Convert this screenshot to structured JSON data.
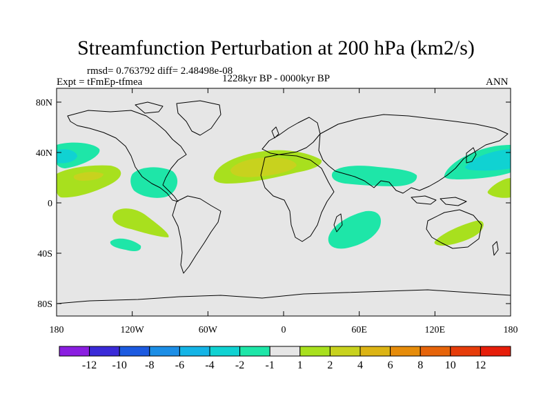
{
  "title": "Streamfunction Perturbation at 200 hPa (km2/s)",
  "stats": "rmsd= 0.763792 diff= 2.48498e-08",
  "experiment": "Expt = tFmEp-tfmea",
  "period": "1228kyr BP - 0000kyr BP",
  "season": "ANN",
  "lat_ticks": [
    "80N",
    "40N",
    "0",
    "40S",
    "80S"
  ],
  "lat_values": [
    80,
    40,
    0,
    -40,
    -80
  ],
  "lon_ticks": [
    "180",
    "120W",
    "60W",
    "0",
    "60E",
    "120E",
    "180"
  ],
  "lon_values": [
    -180,
    -120,
    -60,
    0,
    60,
    120,
    180
  ],
  "colorbar": {
    "labels": [
      "-12",
      "-10",
      "-8",
      "-6",
      "-4",
      "-2",
      "-1",
      "1",
      "2",
      "4",
      "6",
      "8",
      "10",
      "12"
    ],
    "colors": [
      "#8a1ee0",
      "#3a2ad8",
      "#1c5ae0",
      "#1c8ee6",
      "#14b4e6",
      "#10d2d2",
      "#1ee6a8",
      "#e6e6e6",
      "#a8e01e",
      "#c8d21e",
      "#dcb414",
      "#e68c0a",
      "#e6640a",
      "#e63c0a",
      "#e61e0a"
    ]
  },
  "map_colors": {
    "background": "#e6e6e6",
    "coast": "#000000",
    "pos_weak": "#a8e01e",
    "pos_mid": "#c8d21e",
    "neg_weak": "#1ee6a8",
    "neg_mid": "#10d2d2"
  }
}
